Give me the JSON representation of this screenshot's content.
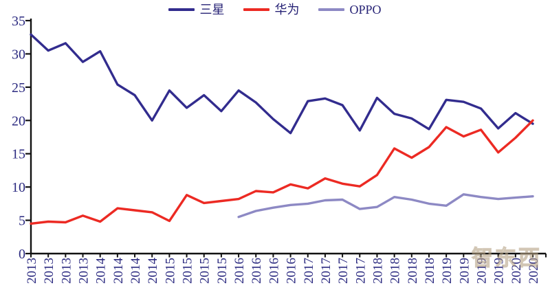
{
  "page": {
    "background": "#ffffff"
  },
  "legend": {
    "items": [
      {
        "label": "三星",
        "color": "#322c8e"
      },
      {
        "label": "华为",
        "color": "#ec2a23"
      },
      {
        "label": "OPPO",
        "color": "#8d89c4"
      }
    ]
  },
  "watermark": {
    "text": "智东西"
  },
  "chart_data": {
    "type": "line",
    "title": "",
    "x_categories": [
      "2013",
      "2013",
      "2013",
      "2013",
      "2014",
      "2014",
      "2014",
      "2014",
      "2015",
      "2015",
      "2015",
      "2015",
      "2016",
      "2016",
      "2016",
      "2016",
      "2017",
      "2017",
      "2017",
      "2017",
      "2018",
      "2018",
      "2018",
      "2018",
      "2019",
      "2019",
      "2019",
      "2019",
      "2020",
      "2020"
    ],
    "series": [
      {
        "name": "三星",
        "color": "#322c8e",
        "values": [
          32.9,
          30.5,
          31.6,
          28.8,
          30.4,
          25.4,
          23.8,
          20.0,
          24.5,
          21.9,
          23.8,
          21.4,
          24.5,
          22.7,
          20.2,
          18.1,
          22.9,
          23.3,
          22.3,
          18.5,
          23.4,
          21.0,
          20.3,
          18.7,
          23.1,
          22.8,
          21.8,
          18.8,
          21.1,
          19.5
        ]
      },
      {
        "name": "华为",
        "color": "#ec2a23",
        "values": [
          4.5,
          4.8,
          4.7,
          5.7,
          4.8,
          6.8,
          6.5,
          6.2,
          4.9,
          8.8,
          7.6,
          7.9,
          8.2,
          9.4,
          9.2,
          10.4,
          9.8,
          11.3,
          10.5,
          10.1,
          11.8,
          15.8,
          14.4,
          16.0,
          19.0,
          17.6,
          18.6,
          15.2,
          17.4,
          20.0
        ]
      },
      {
        "name": "OPPO",
        "color": "#8d89c4",
        "values": [
          null,
          null,
          null,
          null,
          null,
          null,
          null,
          null,
          null,
          null,
          null,
          null,
          5.5,
          6.4,
          6.9,
          7.3,
          7.5,
          8.0,
          8.1,
          6.7,
          7.0,
          8.5,
          8.1,
          7.5,
          7.2,
          8.9,
          8.5,
          8.2,
          8.4,
          8.6
        ]
      }
    ],
    "ylim": [
      0,
      35
    ],
    "y_ticks": [
      0,
      5,
      10,
      15,
      20,
      25,
      30,
      35
    ],
    "xlabel": "",
    "ylabel": "",
    "grid": false,
    "legend_position": "top-center",
    "axis_color": "#111111",
    "label_color": "#2b2a80"
  }
}
